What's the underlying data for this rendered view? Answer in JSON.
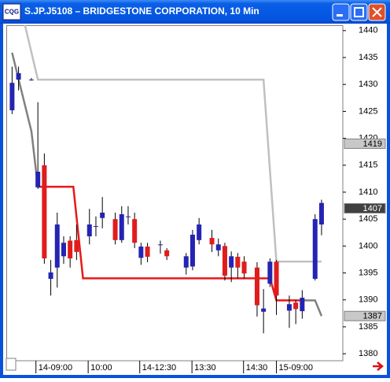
{
  "window": {
    "icon_text": "CQG"
  },
  "chart_data": {
    "type": "candlestick",
    "title": "S.JP.J5108 – BRIDGESTONE CORPORATION, 10 Min",
    "up_color": "#2424b4",
    "down_color": "#e01c1c",
    "xlim": [
      -0.9,
      51.3
    ],
    "ylim": [
      1378.7,
      1441
    ],
    "yticks": [
      1380,
      1385,
      1390,
      1395,
      1400,
      1405,
      1410,
      1415,
      1420,
      1425,
      1430,
      1435,
      1440
    ],
    "xticks": [
      {
        "value": 3.7,
        "label": "14-09:00"
      },
      {
        "value": 11.8,
        "label": "10:00"
      },
      {
        "value": 19.8,
        "label": "14-12:30"
      },
      {
        "value": 27.9,
        "label": "13:30"
      },
      {
        "value": 35.9,
        "label": "14:30"
      },
      {
        "value": 41,
        "label": "15-09:00"
      }
    ],
    "x": [
      0,
      1,
      3,
      4,
      5,
      6,
      7,
      8,
      9,
      10,
      12,
      13,
      14,
      16,
      17,
      18,
      19,
      20,
      21,
      23,
      24,
      27,
      28,
      29,
      31,
      32,
      33,
      34,
      35,
      36,
      38,
      39,
      40,
      41,
      43,
      44,
      45,
      47,
      48
    ],
    "open": [
      1425.2,
      1430.9,
      1430.9,
      1410.9,
      1415,
      1393.9,
      1396,
      1398.1,
      1401,
      1401.1,
      1401.8,
      1403.7,
      1405.2,
      1405,
      1401.1,
      1405.5,
      1405,
      1397.8,
      1399.9,
      1400.3,
      1399.2,
      1396,
      1396.2,
      1401.1,
      1401.5,
      1399.2,
      1400,
      1396,
      1398,
      1397.1,
      1396,
      1387.8,
      1393,
      1397.1,
      1388,
      1389.5,
      1387.9,
      1393.9,
      1404
    ],
    "high": [
      1433.3,
      1433.3,
      1431.2,
      1426.7,
      1417.2,
      1397.4,
      1406.2,
      1401.8,
      1401.8,
      1404,
      1406.9,
      1405.5,
      1409.1,
      1406.2,
      1407.4,
      1407.4,
      1406.2,
      1400.6,
      1400.6,
      1401,
      1399.6,
      1398.7,
      1403,
      1405.2,
      1403,
      1401.4,
      1400.6,
      1399,
      1398.7,
      1398.1,
      1397,
      1392,
      1397.7,
      1397.4,
      1390.8,
      1390,
      1391.8,
      1405.9,
      1408.6
    ],
    "low": [
      1424.5,
      1428.9,
      1430.7,
      1410.6,
      1396.7,
      1390.8,
      1392.3,
      1396.7,
      1396,
      1397.4,
      1400.3,
      1401.8,
      1403.3,
      1400.3,
      1400.6,
      1404,
      1399.6,
      1396.5,
      1397,
      1398.6,
      1397.4,
      1394.7,
      1395.5,
      1400.3,
      1398.9,
      1398.1,
      1393.6,
      1393.3,
      1394,
      1394,
      1386.9,
      1383.8,
      1392.4,
      1387.2,
      1384.8,
      1385.5,
      1386.5,
      1393.6,
      1402
    ],
    "close": [
      1430.3,
      1432.1,
      1430.9,
      1413.8,
      1397.7,
      1395.1,
      1404,
      1400.6,
      1397.7,
      1398.9,
      1404,
      1403.7,
      1406.2,
      1401.1,
      1405.9,
      1405.5,
      1400.6,
      1399.9,
      1398,
      1400.3,
      1398.1,
      1398.1,
      1402.1,
      1404,
      1400.3,
      1400.3,
      1394.5,
      1398.1,
      1396,
      1394.9,
      1389,
      1388.4,
      1397.1,
      1390.8,
      1389.2,
      1388.3,
      1390.4,
      1405,
      1408
    ],
    "lines": [
      {
        "color": "#c0c0c0",
        "x": [
          2,
          4,
          39,
          41,
          48
        ],
        "values": [
          1441,
          1430.9,
          1430.9,
          1397.1,
          1397.1
        ]
      },
      {
        "color": "#808080",
        "x": [
          0,
          1,
          3,
          4
        ],
        "values": [
          1435.9,
          1431,
          1421.3,
          1411
        ]
      },
      {
        "color": "#808080",
        "x": [
          45,
          47,
          48
        ],
        "values": [
          1389.9,
          1389.9,
          1387
        ]
      },
      {
        "color": "#e81818",
        "x": [
          4,
          9.5,
          11,
          40,
          41,
          45
        ],
        "values": [
          1411,
          1411,
          1394,
          1394,
          1389.9,
          1389.9
        ]
      }
    ],
    "price_markers": [
      {
        "value": 1419,
        "color": "#c8c8c8",
        "text_color": "#000000"
      },
      {
        "value": 1407,
        "color": "#404040",
        "text_color": "#ffffff"
      },
      {
        "value": 1387,
        "color": "#c8c8c8",
        "text_color": "#000000"
      }
    ]
  }
}
